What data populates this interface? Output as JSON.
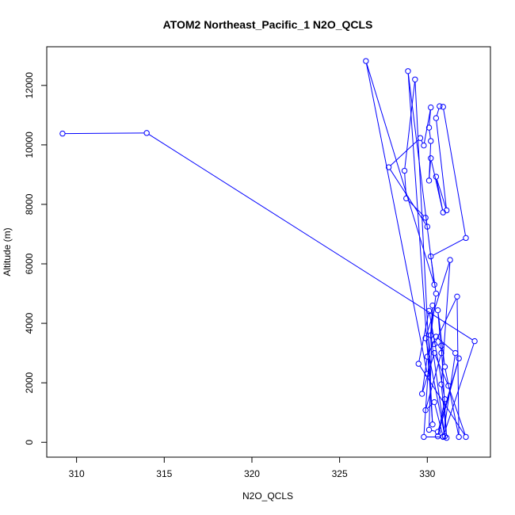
{
  "chart_data": {
    "type": "line",
    "title": "ATOM2 Northeast_Pacific_1 N2O_QCLS",
    "xlabel": "N2O_QCLS",
    "ylabel": "Altitude (m)",
    "xlim": [
      308.3,
      333.6
    ],
    "ylim": [
      -500,
      13300
    ],
    "x_ticks": [
      310,
      315,
      320,
      325,
      330
    ],
    "y_ticks": [
      0,
      2000,
      4000,
      6000,
      8000,
      10000,
      12000
    ],
    "x_tick_labels": [
      "310",
      "315",
      "320",
      "325",
      "330"
    ],
    "y_tick_labels": [
      "0",
      "2000",
      "4000",
      "6000",
      "8000",
      "10000",
      "12000"
    ],
    "grid": false,
    "series_color": "#0000ff",
    "marker": "open-circle",
    "series": [
      {
        "points": [
          [
            309.2,
            10380
          ],
          [
            314.0,
            10400
          ],
          [
            332.7,
            3400
          ],
          [
            330.9,
            180
          ],
          [
            329.8,
            180
          ],
          [
            330.3,
            4600
          ],
          [
            330.1,
            420
          ],
          [
            330.6,
            350
          ],
          [
            331.8,
            2820
          ],
          [
            330.6,
            200
          ],
          [
            331.0,
            1450
          ],
          [
            330.1,
            4420
          ],
          [
            329.5,
            2640
          ],
          [
            332.2,
            180
          ],
          [
            331.2,
            1900
          ],
          [
            330.4,
            3000
          ],
          [
            329.7,
            1630
          ],
          [
            330.0,
            2880
          ],
          [
            330.5,
            3550
          ],
          [
            331.6,
            3000
          ],
          [
            330.9,
            190
          ],
          [
            330.4,
            1350
          ],
          [
            329.9,
            1080
          ],
          [
            330.8,
            3000
          ],
          [
            330.6,
            4440
          ],
          [
            331.0,
            2540
          ],
          [
            331.8,
            180
          ],
          [
            331.7,
            4900
          ],
          [
            330.4,
            3300
          ],
          [
            330.8,
            3250
          ],
          [
            331.1,
            150
          ],
          [
            330.8,
            1950
          ],
          [
            331.3,
            6130
          ],
          [
            329.9,
            3500
          ],
          [
            331.0,
            200
          ],
          [
            330.2,
            3600
          ],
          [
            330.5,
            5000
          ],
          [
            330.2,
            6250
          ],
          [
            332.2,
            6870
          ],
          [
            330.9,
            11280
          ],
          [
            330.7,
            11300
          ],
          [
            330.5,
            10900
          ],
          [
            331.1,
            7800
          ],
          [
            330.5,
            8930
          ],
          [
            330.9,
            7730
          ],
          [
            330.2,
            9550
          ],
          [
            330.1,
            8800
          ],
          [
            330.2,
            10130
          ],
          [
            330.1,
            10580
          ],
          [
            330.2,
            11260
          ],
          [
            329.8,
            9980
          ],
          [
            329.6,
            10230
          ],
          [
            327.8,
            9250
          ],
          [
            330.0,
            7250
          ],
          [
            329.9,
            7550
          ],
          [
            328.8,
            8200
          ],
          [
            328.7,
            9130
          ],
          [
            329.3,
            12200
          ],
          [
            330.3,
            600
          ],
          [
            328.9,
            12480
          ],
          [
            330.4,
            5300
          ],
          [
            326.5,
            12820
          ],
          [
            330.0,
            2300
          ]
        ]
      }
    ]
  }
}
